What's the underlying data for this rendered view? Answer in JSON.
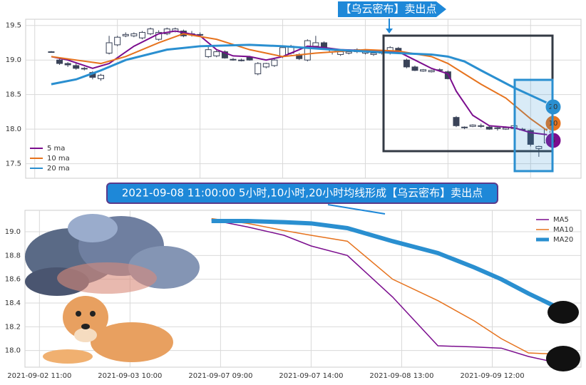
{
  "chart_data": [
    {
      "type": "candlestick",
      "annotation": "【乌云密布】卖出点",
      "xlim": [
        -3.1,
        64.1
      ],
      "xticks": [
        -2,
        8,
        18,
        28,
        38,
        48,
        58
      ],
      "ylim": [
        17.29,
        19.59
      ],
      "yticks": [
        17.5,
        {
          "value": 18,
          "label": "18.0"
        },
        18.5,
        {
          "value": 19,
          "label": "19.0"
        },
        19.5
      ],
      "grid": true,
      "legend": "lower left",
      "up_color": "#ffffff",
      "down_color": "#3a4358",
      "open": [
        19.12,
        19.0,
        18.95,
        18.92,
        18.88,
        18.82,
        18.73,
        19.1,
        19.22,
        19.35,
        19.35,
        19.32,
        19.38,
        19.3,
        19.38,
        19.42,
        19.42,
        19.37,
        19.36,
        19.05,
        19.06,
        19.12,
        19.01,
        19.0,
        19.04,
        18.8,
        18.9,
        18.92,
        19.05,
        19.1,
        19.08,
        19.0,
        19.2,
        19.25,
        19.12,
        19.08,
        19.1,
        19.12,
        19.1,
        19.08,
        19.1,
        19.1,
        19.17,
        19.0,
        18.9,
        18.84,
        18.83,
        18.85,
        18.83,
        18.17,
        18.02,
        18.04,
        18.05,
        18.03,
        18.01,
        18.0,
        18.01,
        18.0,
        17.98,
        17.72,
        17.8
      ],
      "high": [
        19.13,
        19.03,
        18.97,
        18.95,
        18.9,
        18.84,
        18.8,
        19.35,
        19.35,
        19.4,
        19.4,
        19.42,
        19.47,
        19.43,
        19.47,
        19.47,
        19.44,
        19.42,
        19.4,
        19.2,
        19.14,
        19.14,
        19.03,
        19.02,
        19.06,
        18.97,
        18.96,
        19.02,
        19.2,
        19.22,
        19.1,
        19.3,
        19.35,
        19.27,
        19.16,
        19.14,
        19.14,
        19.17,
        19.14,
        19.12,
        19.14,
        19.2,
        19.19,
        19.02,
        18.92,
        18.87,
        18.86,
        18.88,
        18.85,
        18.19,
        18.04,
        18.07,
        18.08,
        18.05,
        18.03,
        18.04,
        18.06,
        18.02,
        18.0,
        17.76,
        18.02
      ],
      "low": [
        19.11,
        18.93,
        18.9,
        18.86,
        18.85,
        18.72,
        18.7,
        19.08,
        19.2,
        19.33,
        19.33,
        19.3,
        19.36,
        19.28,
        19.36,
        19.4,
        19.33,
        19.34,
        19.34,
        19.03,
        19.04,
        19.02,
        18.99,
        18.98,
        18.99,
        18.78,
        18.88,
        18.9,
        19.03,
        19.08,
        19.0,
        18.98,
        19.18,
        19.16,
        19.08,
        19.06,
        19.08,
        19.1,
        19.08,
        19.06,
        19.08,
        19.08,
        19.1,
        18.88,
        18.84,
        18.83,
        18.82,
        18.83,
        18.72,
        18.03,
        18.0,
        18.03,
        18.02,
        17.99,
        17.98,
        17.99,
        17.99,
        17.98,
        17.75,
        17.6,
        17.78
      ],
      "close": [
        19.11,
        18.95,
        18.93,
        18.88,
        18.87,
        18.75,
        18.78,
        19.25,
        19.33,
        19.37,
        19.38,
        19.4,
        19.45,
        19.4,
        19.45,
        19.45,
        19.35,
        19.38,
        19.37,
        19.15,
        19.12,
        19.03,
        19.0,
        19.0,
        19.0,
        18.95,
        18.95,
        19.0,
        19.18,
        19.2,
        19.02,
        19.28,
        19.25,
        19.18,
        19.15,
        19.12,
        19.12,
        19.15,
        19.12,
        19.1,
        19.12,
        19.18,
        19.12,
        18.9,
        18.85,
        18.86,
        18.85,
        18.86,
        18.73,
        18.05,
        18.03,
        18.06,
        18.05,
        18.0,
        18.02,
        18.02,
        18.05,
        18.0,
        17.78,
        17.75,
        18.0
      ],
      "series": [
        {
          "name": "5 ma",
          "color": "#7b0d8e",
          "end_label": "5",
          "x": [
            0,
            2,
            5,
            7,
            10,
            13,
            15,
            18,
            20,
            22,
            24,
            26,
            28,
            31,
            33,
            35,
            40,
            42,
            44,
            46,
            48,
            49,
            51,
            53,
            56,
            58,
            60
          ],
          "values": [
            19.05,
            19.0,
            18.88,
            18.95,
            19.2,
            19.38,
            19.42,
            19.35,
            19.15,
            19.06,
            19.05,
            19.0,
            19.05,
            19.2,
            19.18,
            19.15,
            19.13,
            19.12,
            19.0,
            18.88,
            18.8,
            18.55,
            18.2,
            18.05,
            18.02,
            17.95,
            17.92
          ]
        },
        {
          "name": "10 ma",
          "color": "#e6731e",
          "end_label": "10",
          "x": [
            0,
            3,
            6,
            9,
            13,
            16,
            20,
            24,
            28,
            32,
            38,
            42,
            46,
            48,
            50,
            52,
            55,
            58,
            60
          ],
          "values": [
            19.05,
            19.0,
            18.95,
            19.05,
            19.25,
            19.38,
            19.3,
            19.15,
            19.05,
            19.1,
            19.15,
            19.13,
            19.05,
            18.95,
            18.8,
            18.65,
            18.45,
            18.15,
            17.98
          ]
        },
        {
          "name": "20 ma",
          "color": "#2a8fd0",
          "end_label": "20",
          "x": [
            0,
            3,
            6,
            9,
            14,
            18,
            24,
            28,
            34,
            42,
            46,
            48,
            50,
            52,
            56,
            60
          ],
          "values": [
            18.65,
            18.72,
            18.85,
            19.0,
            19.15,
            19.2,
            19.22,
            19.2,
            19.15,
            19.1,
            19.08,
            19.05,
            18.98,
            18.85,
            18.6,
            18.38
          ]
        }
      ]
    },
    {
      "type": "line",
      "annotation": "2021-09-08 11:00:00 5小时,10小时,20小时均线形成【乌云密布】卖出点",
      "xlim": [
        -1.6,
        59.8
      ],
      "xticks": [
        {
          "value": 0,
          "label": "2021-09-02 11:00"
        },
        {
          "value": 10,
          "label": "2021-09-03 10:00"
        },
        {
          "value": 20,
          "label": "2021-09-07 09:00"
        },
        {
          "value": 30,
          "label": "2021-09-07 14:00"
        },
        {
          "value": 40,
          "label": "2021-09-08 13:00"
        },
        {
          "value": 50,
          "label": "2021-09-09 12:00"
        }
      ],
      "ylim": [
        17.86,
        19.18
      ],
      "yticks": [
        {
          "value": 18,
          "label": "18.0"
        },
        18.2,
        18.4,
        18.6,
        18.8,
        {
          "value": 19,
          "label": "19.0"
        }
      ],
      "grid": true,
      "legend": "upper right",
      "x": [
        19,
        23,
        27,
        30,
        34,
        39,
        44,
        48,
        51,
        54,
        57
      ],
      "series": [
        {
          "name": "MA5",
          "color": "#7b0d8e",
          "values": [
            19.1,
            19.04,
            18.97,
            18.88,
            18.8,
            18.45,
            18.04,
            18.03,
            18.02,
            17.95,
            17.9
          ]
        },
        {
          "name": "MA10",
          "color": "#e6731e",
          "values": [
            19.11,
            19.07,
            19.01,
            18.97,
            18.92,
            18.6,
            18.42,
            18.25,
            18.1,
            17.98,
            17.97
          ]
        },
        {
          "name": "MA20",
          "color": "#2a8fd0",
          "values": [
            19.09,
            19.09,
            19.08,
            19.07,
            19.03,
            18.92,
            18.82,
            18.7,
            18.6,
            18.48,
            18.37
          ]
        }
      ]
    }
  ]
}
